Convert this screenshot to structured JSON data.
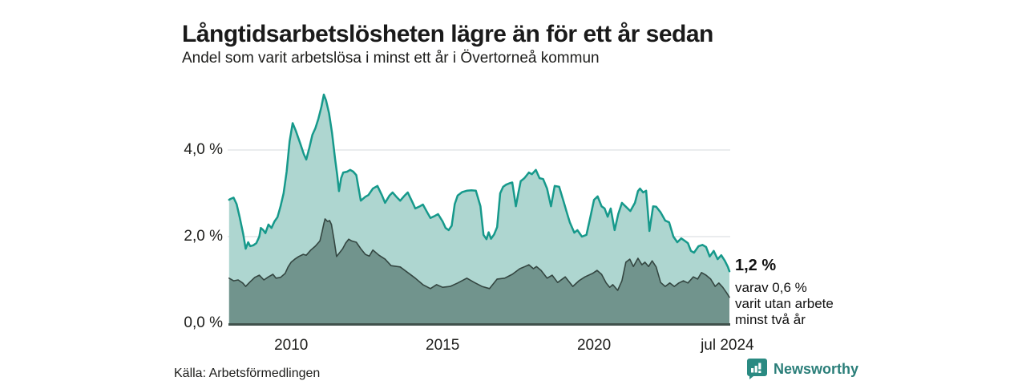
{
  "header": {
    "title": "Långtidsarbetslösheten lägre än för ett år sedan",
    "subtitle": "Andel som varit arbetslösa i minst ett år i Övertorneå kommun"
  },
  "chart_data": {
    "type": "area",
    "title": "Långtidsarbetslösheten lägre än för ett år sedan",
    "subtitle": "Andel som varit arbetslösa i minst ett år i Övertorneå kommun",
    "unit": "%",
    "grid": true,
    "grid_color": "#e4e6e9",
    "axis_color": "#40514c",
    "x_axis": {
      "range_years": [
        2007.93,
        2024.47
      ],
      "ticks": [
        {
          "label": "2010",
          "year": 2010
        },
        {
          "label": "2015",
          "year": 2015
        },
        {
          "label": "2020",
          "year": 2020
        },
        {
          "label": "jul 2024",
          "year": 2024.4
        }
      ]
    },
    "y_axis": {
      "range": [
        0,
        5.4
      ],
      "ticks": [
        {
          "label": "0,0 %",
          "value": 0
        },
        {
          "label": "2,0 %",
          "value": 2
        },
        {
          "label": "4,0 %",
          "value": 4
        }
      ]
    },
    "series": [
      {
        "name": "arbetslosa-minst-ett-ar",
        "label": "Andel som varit arbetslösa i minst ett år",
        "color": "#16998b",
        "fill": "#aed6d0",
        "last_value_label": "1,2 %",
        "points": [
          [
            2007.95,
            2.85
          ],
          [
            2008.0,
            2.87
          ],
          [
            2008.1,
            2.9
          ],
          [
            2008.2,
            2.75
          ],
          [
            2008.3,
            2.45
          ],
          [
            2008.42,
            2.05
          ],
          [
            2008.5,
            1.72
          ],
          [
            2008.58,
            1.87
          ],
          [
            2008.65,
            1.78
          ],
          [
            2008.75,
            1.8
          ],
          [
            2008.85,
            1.85
          ],
          [
            2008.95,
            2.0
          ],
          [
            2009.0,
            2.2
          ],
          [
            2009.08,
            2.15
          ],
          [
            2009.15,
            2.08
          ],
          [
            2009.25,
            2.28
          ],
          [
            2009.35,
            2.2
          ],
          [
            2009.45,
            2.35
          ],
          [
            2009.55,
            2.45
          ],
          [
            2009.65,
            2.7
          ],
          [
            2009.75,
            3.0
          ],
          [
            2009.85,
            3.5
          ],
          [
            2009.95,
            4.2
          ],
          [
            2010.05,
            4.62
          ],
          [
            2010.15,
            4.45
          ],
          [
            2010.3,
            4.15
          ],
          [
            2010.42,
            3.9
          ],
          [
            2010.5,
            3.78
          ],
          [
            2010.6,
            4.05
          ],
          [
            2010.7,
            4.35
          ],
          [
            2010.8,
            4.5
          ],
          [
            2010.9,
            4.72
          ],
          [
            2011.0,
            5.0
          ],
          [
            2011.08,
            5.28
          ],
          [
            2011.15,
            5.15
          ],
          [
            2011.25,
            4.85
          ],
          [
            2011.35,
            4.4
          ],
          [
            2011.45,
            3.8
          ],
          [
            2011.52,
            3.42
          ],
          [
            2011.58,
            3.05
          ],
          [
            2011.65,
            3.35
          ],
          [
            2011.72,
            3.48
          ],
          [
            2011.85,
            3.5
          ],
          [
            2011.95,
            3.54
          ],
          [
            2012.05,
            3.5
          ],
          [
            2012.15,
            3.42
          ],
          [
            2012.3,
            2.83
          ],
          [
            2012.45,
            2.92
          ],
          [
            2012.55,
            2.96
          ],
          [
            2012.7,
            3.11
          ],
          [
            2012.85,
            3.17
          ],
          [
            2013.0,
            2.95
          ],
          [
            2013.1,
            2.78
          ],
          [
            2013.25,
            2.95
          ],
          [
            2013.35,
            3.02
          ],
          [
            2013.5,
            2.9
          ],
          [
            2013.6,
            2.83
          ],
          [
            2013.75,
            2.95
          ],
          [
            2013.85,
            3.02
          ],
          [
            2014.0,
            2.8
          ],
          [
            2014.1,
            2.65
          ],
          [
            2014.25,
            2.7
          ],
          [
            2014.35,
            2.74
          ],
          [
            2014.5,
            2.55
          ],
          [
            2014.6,
            2.43
          ],
          [
            2014.75,
            2.48
          ],
          [
            2014.85,
            2.52
          ],
          [
            2015.0,
            2.35
          ],
          [
            2015.1,
            2.2
          ],
          [
            2015.2,
            2.15
          ],
          [
            2015.3,
            2.25
          ],
          [
            2015.4,
            2.75
          ],
          [
            2015.5,
            2.95
          ],
          [
            2015.65,
            3.03
          ],
          [
            2015.8,
            3.06
          ],
          [
            2015.95,
            3.07
          ],
          [
            2016.1,
            3.06
          ],
          [
            2016.25,
            2.7
          ],
          [
            2016.35,
            2.04
          ],
          [
            2016.45,
            1.94
          ],
          [
            2016.52,
            2.1
          ],
          [
            2016.6,
            1.95
          ],
          [
            2016.7,
            2.05
          ],
          [
            2016.8,
            2.22
          ],
          [
            2016.9,
            3.0
          ],
          [
            2017.0,
            3.15
          ],
          [
            2017.1,
            3.2
          ],
          [
            2017.2,
            3.23
          ],
          [
            2017.3,
            3.25
          ],
          [
            2017.42,
            2.7
          ],
          [
            2017.5,
            3.0
          ],
          [
            2017.58,
            3.28
          ],
          [
            2017.7,
            3.35
          ],
          [
            2017.85,
            3.48
          ],
          [
            2017.95,
            3.44
          ],
          [
            2018.08,
            3.54
          ],
          [
            2018.2,
            3.35
          ],
          [
            2018.32,
            3.33
          ],
          [
            2018.45,
            3.11
          ],
          [
            2018.58,
            2.7
          ],
          [
            2018.7,
            3.17
          ],
          [
            2018.85,
            3.15
          ],
          [
            2019.0,
            2.8
          ],
          [
            2019.1,
            2.56
          ],
          [
            2019.2,
            2.33
          ],
          [
            2019.35,
            2.09
          ],
          [
            2019.45,
            2.15
          ],
          [
            2019.6,
            2.0
          ],
          [
            2019.75,
            2.04
          ],
          [
            2019.88,
            2.46
          ],
          [
            2020.0,
            2.85
          ],
          [
            2020.12,
            2.93
          ],
          [
            2020.25,
            2.7
          ],
          [
            2020.35,
            2.65
          ],
          [
            2020.45,
            2.46
          ],
          [
            2020.55,
            2.65
          ],
          [
            2020.68,
            2.15
          ],
          [
            2020.8,
            2.52
          ],
          [
            2020.92,
            2.78
          ],
          [
            2021.05,
            2.69
          ],
          [
            2021.2,
            2.59
          ],
          [
            2021.35,
            2.78
          ],
          [
            2021.45,
            3.05
          ],
          [
            2021.52,
            3.11
          ],
          [
            2021.62,
            3.02
          ],
          [
            2021.72,
            3.06
          ],
          [
            2021.83,
            2.13
          ],
          [
            2021.95,
            2.7
          ],
          [
            2022.05,
            2.69
          ],
          [
            2022.2,
            2.56
          ],
          [
            2022.35,
            2.37
          ],
          [
            2022.48,
            2.33
          ],
          [
            2022.62,
            2.0
          ],
          [
            2022.75,
            1.87
          ],
          [
            2022.88,
            1.96
          ],
          [
            2023.0,
            1.9
          ],
          [
            2023.1,
            1.85
          ],
          [
            2023.2,
            1.67
          ],
          [
            2023.3,
            1.63
          ],
          [
            2023.45,
            1.78
          ],
          [
            2023.58,
            1.81
          ],
          [
            2023.7,
            1.76
          ],
          [
            2023.82,
            1.54
          ],
          [
            2023.95,
            1.67
          ],
          [
            2024.08,
            1.48
          ],
          [
            2024.2,
            1.57
          ],
          [
            2024.32,
            1.44
          ],
          [
            2024.42,
            1.3
          ],
          [
            2024.47,
            1.2
          ]
        ]
      },
      {
        "name": "utan-arbete-minst-tva-ar",
        "label": "varav varit utan arbete minst två år",
        "color": "#344641",
        "fill": "#71948d",
        "last_value_label": "0,6 %",
        "points": [
          [
            2007.95,
            1.04
          ],
          [
            2008.1,
            0.98
          ],
          [
            2008.25,
            1.0
          ],
          [
            2008.4,
            0.93
          ],
          [
            2008.5,
            0.85
          ],
          [
            2008.65,
            0.96
          ],
          [
            2008.8,
            1.06
          ],
          [
            2008.95,
            1.11
          ],
          [
            2009.1,
            1.0
          ],
          [
            2009.25,
            1.07
          ],
          [
            2009.4,
            1.13
          ],
          [
            2009.5,
            1.04
          ],
          [
            2009.65,
            1.06
          ],
          [
            2009.8,
            1.15
          ],
          [
            2009.9,
            1.3
          ],
          [
            2010.0,
            1.41
          ],
          [
            2010.12,
            1.48
          ],
          [
            2010.25,
            1.54
          ],
          [
            2010.4,
            1.59
          ],
          [
            2010.5,
            1.57
          ],
          [
            2010.65,
            1.69
          ],
          [
            2010.8,
            1.78
          ],
          [
            2010.95,
            1.9
          ],
          [
            2011.02,
            2.11
          ],
          [
            2011.08,
            2.3
          ],
          [
            2011.12,
            2.41
          ],
          [
            2011.2,
            2.35
          ],
          [
            2011.27,
            2.37
          ],
          [
            2011.33,
            2.28
          ],
          [
            2011.42,
            1.91
          ],
          [
            2011.5,
            1.54
          ],
          [
            2011.6,
            1.63
          ],
          [
            2011.7,
            1.72
          ],
          [
            2011.8,
            1.85
          ],
          [
            2011.9,
            1.94
          ],
          [
            2012.0,
            1.9
          ],
          [
            2012.15,
            1.87
          ],
          [
            2012.3,
            1.72
          ],
          [
            2012.45,
            1.59
          ],
          [
            2012.58,
            1.55
          ],
          [
            2012.7,
            1.69
          ],
          [
            2012.9,
            1.57
          ],
          [
            2013.1,
            1.48
          ],
          [
            2013.3,
            1.33
          ],
          [
            2013.6,
            1.3
          ],
          [
            2013.85,
            1.17
          ],
          [
            2014.1,
            1.04
          ],
          [
            2014.35,
            0.89
          ],
          [
            2014.6,
            0.8
          ],
          [
            2014.8,
            0.89
          ],
          [
            2015.0,
            0.83
          ],
          [
            2015.25,
            0.85
          ],
          [
            2015.5,
            0.93
          ],
          [
            2015.8,
            1.04
          ],
          [
            2016.05,
            0.94
          ],
          [
            2016.3,
            0.85
          ],
          [
            2016.55,
            0.8
          ],
          [
            2016.8,
            1.02
          ],
          [
            2017.05,
            1.04
          ],
          [
            2017.3,
            1.13
          ],
          [
            2017.55,
            1.26
          ],
          [
            2017.72,
            1.31
          ],
          [
            2017.85,
            1.35
          ],
          [
            2018.0,
            1.26
          ],
          [
            2018.1,
            1.31
          ],
          [
            2018.25,
            1.22
          ],
          [
            2018.45,
            1.04
          ],
          [
            2018.62,
            1.11
          ],
          [
            2018.8,
            0.94
          ],
          [
            2019.05,
            1.07
          ],
          [
            2019.3,
            0.85
          ],
          [
            2019.5,
            0.98
          ],
          [
            2019.7,
            1.07
          ],
          [
            2019.95,
            1.15
          ],
          [
            2020.1,
            1.22
          ],
          [
            2020.25,
            1.13
          ],
          [
            2020.4,
            0.93
          ],
          [
            2020.52,
            0.83
          ],
          [
            2020.62,
            0.89
          ],
          [
            2020.78,
            0.76
          ],
          [
            2020.92,
            0.98
          ],
          [
            2021.05,
            1.41
          ],
          [
            2021.18,
            1.48
          ],
          [
            2021.3,
            1.31
          ],
          [
            2021.45,
            1.5
          ],
          [
            2021.58,
            1.35
          ],
          [
            2021.68,
            1.41
          ],
          [
            2021.8,
            1.31
          ],
          [
            2021.92,
            1.44
          ],
          [
            2022.05,
            1.3
          ],
          [
            2022.2,
            0.94
          ],
          [
            2022.35,
            0.85
          ],
          [
            2022.5,
            0.93
          ],
          [
            2022.65,
            0.85
          ],
          [
            2022.8,
            0.93
          ],
          [
            2022.95,
            0.98
          ],
          [
            2023.1,
            0.93
          ],
          [
            2023.28,
            1.07
          ],
          [
            2023.42,
            1.02
          ],
          [
            2023.55,
            1.17
          ],
          [
            2023.7,
            1.11
          ],
          [
            2023.85,
            1.02
          ],
          [
            2024.0,
            0.85
          ],
          [
            2024.12,
            0.93
          ],
          [
            2024.25,
            0.83
          ],
          [
            2024.38,
            0.7
          ],
          [
            2024.47,
            0.6
          ]
        ]
      }
    ],
    "annotation": {
      "headline": "1,2 %",
      "lines": [
        "varav 0,6 %",
        "varit utan arbete",
        "minst två år"
      ]
    },
    "legend_position": "none"
  },
  "footer": {
    "source": "Källa: Arbetsförmedlingen",
    "brand": "Newsworthy",
    "brand_color": "#2a7e79"
  }
}
